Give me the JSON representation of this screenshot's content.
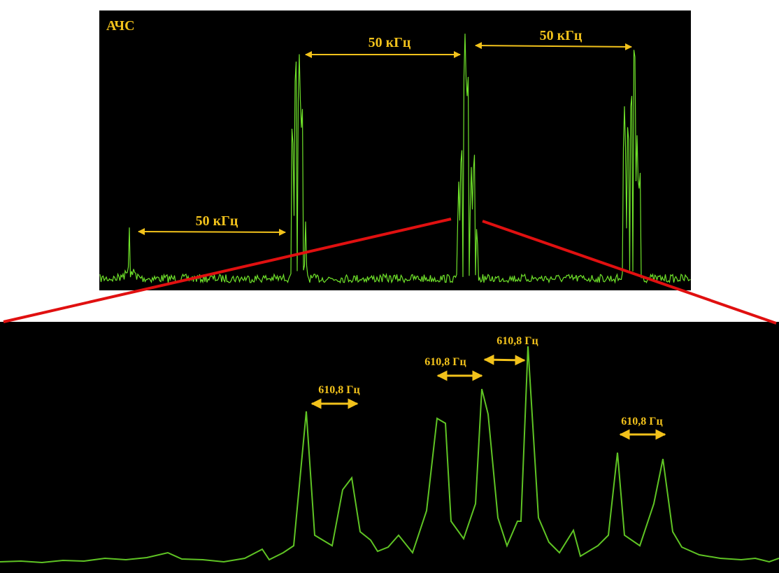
{
  "panel_label": "АЧС",
  "top_annotations": [
    "50 кГц",
    "50 кГц",
    "50 кГц"
  ],
  "bottom_annotations": [
    "610,8 Гц",
    "610,8 Гц",
    "610,8 Гц",
    "610,8 Гц"
  ]
}
